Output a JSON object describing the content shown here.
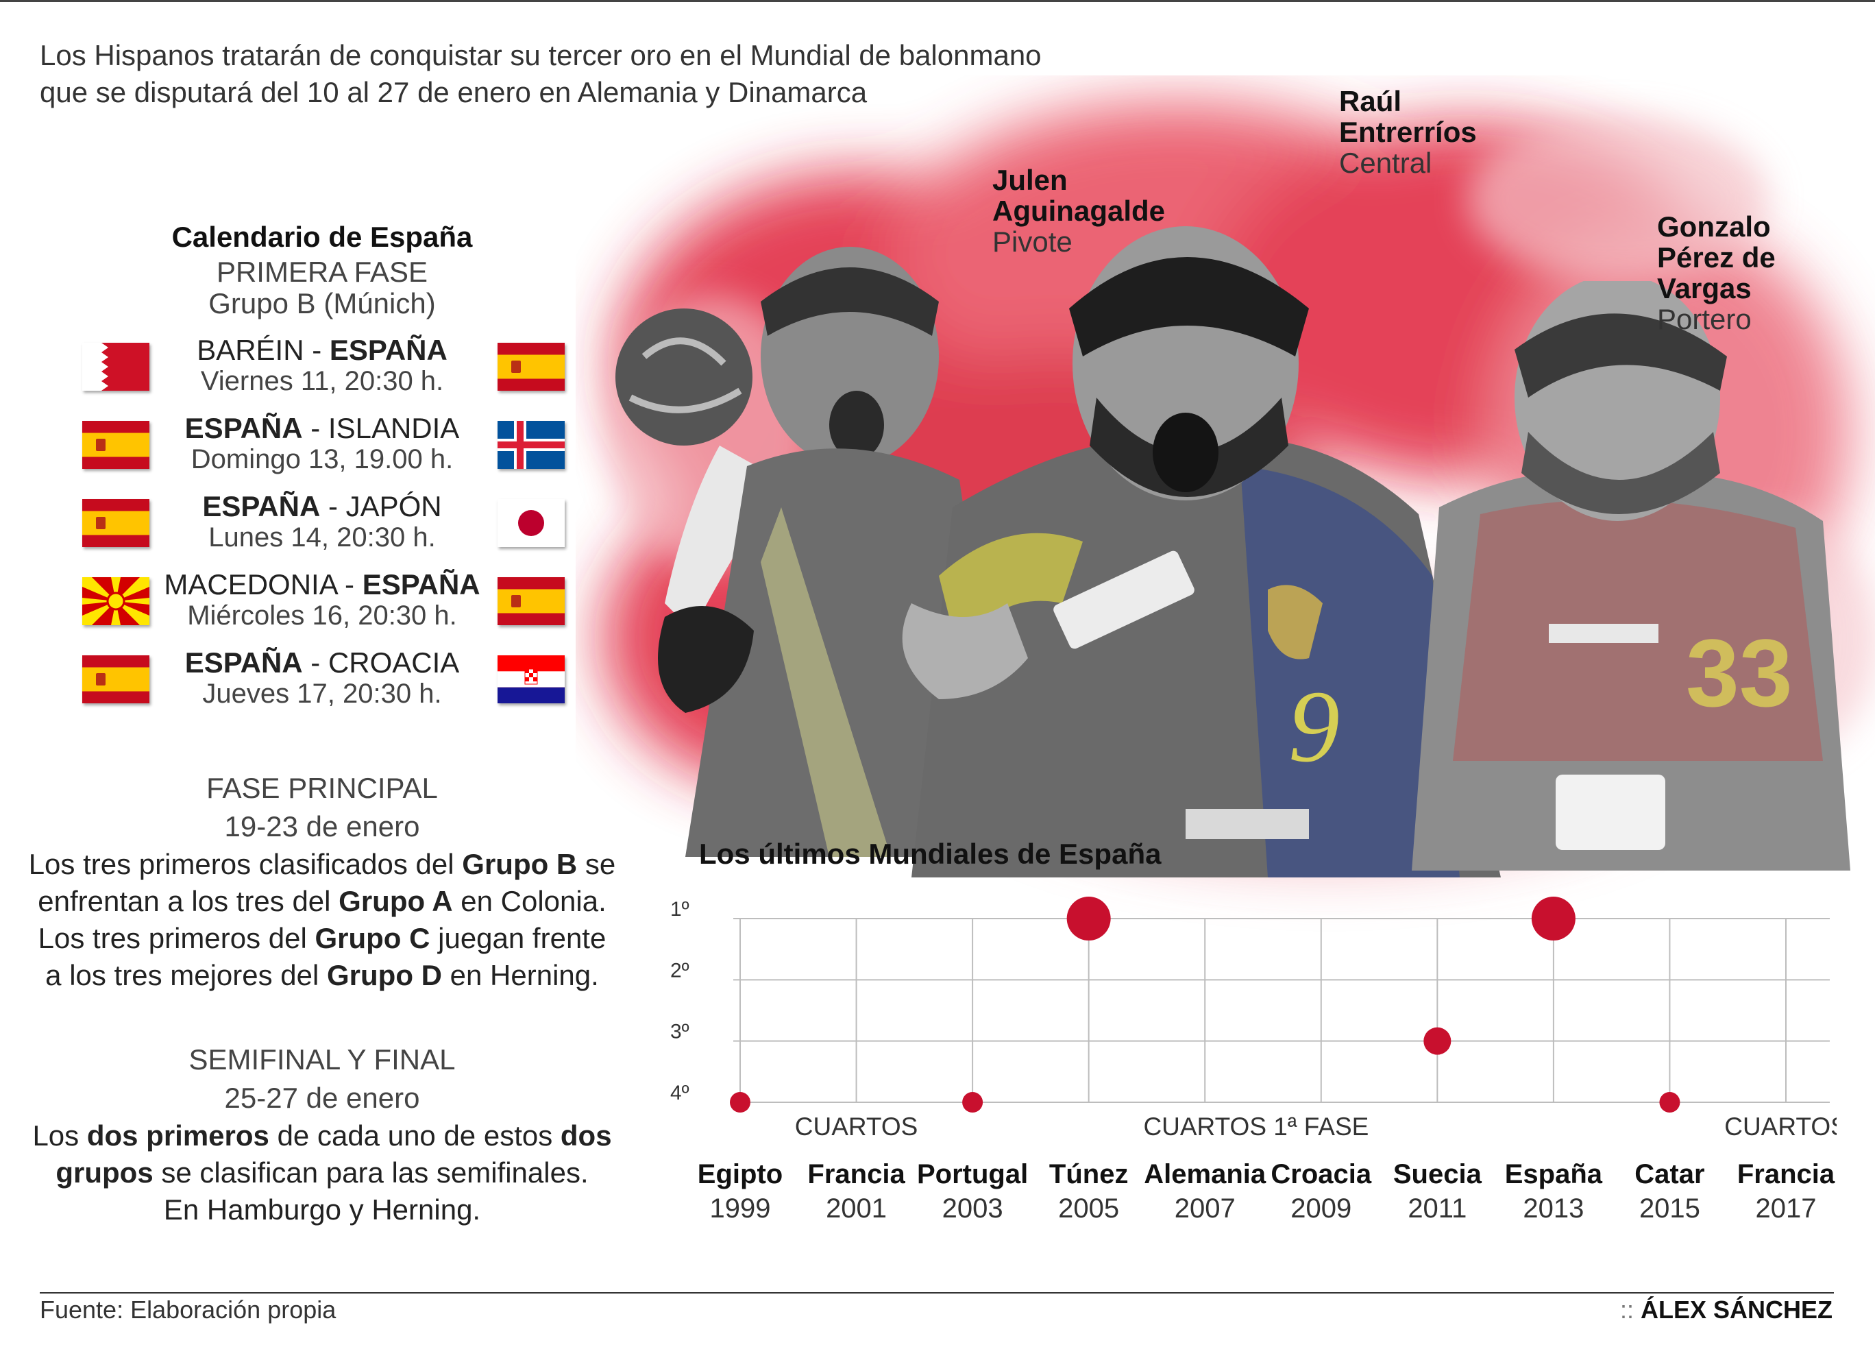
{
  "intro": {
    "line1": "Los Hispanos tratarán de conquistar su tercer oro en el Mundial de balonmano",
    "line2": "que se disputará del 10 al 27 de enero en Alemania y Dinamarca"
  },
  "players": [
    {
      "first": "Julen",
      "last": "Aguinagalde",
      "position": "Pivote"
    },
    {
      "first": "Raúl",
      "last": "Entrerríos",
      "position": "Central"
    },
    {
      "first": "Gonzalo",
      "middle": "Pérez de",
      "last": "Vargas",
      "position": "Portero"
    }
  ],
  "calendar": {
    "title": "Calendario de España",
    "phase": "PRIMERA FASE",
    "group": "Grupo B (Múnich)",
    "matches": [
      {
        "team1": "BARÉIN",
        "team2": "ESPAÑA",
        "sep": " - ",
        "date": "Viernes 11, 20:30 h.",
        "flag1": "bahrain",
        "flag2": "spain",
        "bold": 2
      },
      {
        "team1": "ESPAÑA",
        "team2": "ISLANDIA",
        "sep": " - ",
        "date": "Domingo 13, 19.00 h.",
        "flag1": "spain",
        "flag2": "iceland",
        "bold": 1
      },
      {
        "team1": "ESPAÑA",
        "team2": "JAPÓN",
        "sep": " - ",
        "date": "Lunes 14, 20:30 h.",
        "flag1": "spain",
        "flag2": "japan",
        "bold": 1
      },
      {
        "team1": "MACEDONIA",
        "team2": "ESPAÑA",
        "sep": " - ",
        "date": "Miércoles 16, 20:30 h.",
        "flag1": "macedonia",
        "flag2": "spain",
        "bold": 2
      },
      {
        "team1": "ESPAÑA",
        "team2": "CROACIA",
        "sep": " - ",
        "date": "Jueves 17, 20:30 h.",
        "flag1": "spain",
        "flag2": "croatia",
        "bold": 1
      }
    ]
  },
  "main_phase": {
    "heading": "FASE PRINCIPAL",
    "dates": "19-23 de enero",
    "l1a": "Los tres primeros clasificados del ",
    "l1b": "Grupo B",
    "l1c": " se",
    "l2a": "enfrentan a los tres del ",
    "l2b": "Grupo A",
    "l2c": " en Colonia.",
    "l3a": "Los tres primeros del ",
    "l3b": "Grupo C",
    "l3c": " juegan frente",
    "l4a": "a los tres mejores del ",
    "l4b": "Grupo D",
    "l4c": " en Herning."
  },
  "final_phase": {
    "heading": "SEMIFINAL Y FINAL",
    "dates": "25-27 de enero",
    "l1a": "Los ",
    "l1b": "dos primeros",
    "l1c": " de cada uno de estos ",
    "l1d": "dos",
    "l2a": "grupos",
    "l2b": " se clasifican para las semifinales.",
    "l3": "En Hamburgo y Herning."
  },
  "chart_data": {
    "type": "scatter",
    "title": "Los últimos Mundiales de España",
    "y_ticks": [
      "1º",
      "2º",
      "3º",
      "4º"
    ],
    "ylim": [
      1,
      4
    ],
    "y_inverted": true,
    "points": [
      {
        "host": "Egipto",
        "year": "1999",
        "place": 4,
        "note": ""
      },
      {
        "host": "Francia",
        "year": "2001",
        "place": null,
        "note": "CUARTOS"
      },
      {
        "host": "Portugal",
        "year": "2003",
        "place": 4,
        "note": ""
      },
      {
        "host": "Túnez",
        "year": "2005",
        "place": 1,
        "note": ""
      },
      {
        "host": "Alemania",
        "year": "2007",
        "place": null,
        "note": "CUARTOS"
      },
      {
        "host": "Croacia",
        "year": "2009",
        "place": null,
        "note": "1ª FASE"
      },
      {
        "host": "Suecia",
        "year": "2011",
        "place": 3,
        "note": ""
      },
      {
        "host": "España",
        "year": "2013",
        "place": 1,
        "note": ""
      },
      {
        "host": "Catar",
        "year": "2015",
        "place": 4,
        "note": ""
      },
      {
        "host": "Francia",
        "year": "2017",
        "place": null,
        "note": "CUARTOS"
      }
    ],
    "color": "#c8102e"
  },
  "footer": {
    "source": "Fuente: Elaboración propia",
    "dots": "::",
    "author": "ÁLEX SÁNCHEZ"
  }
}
